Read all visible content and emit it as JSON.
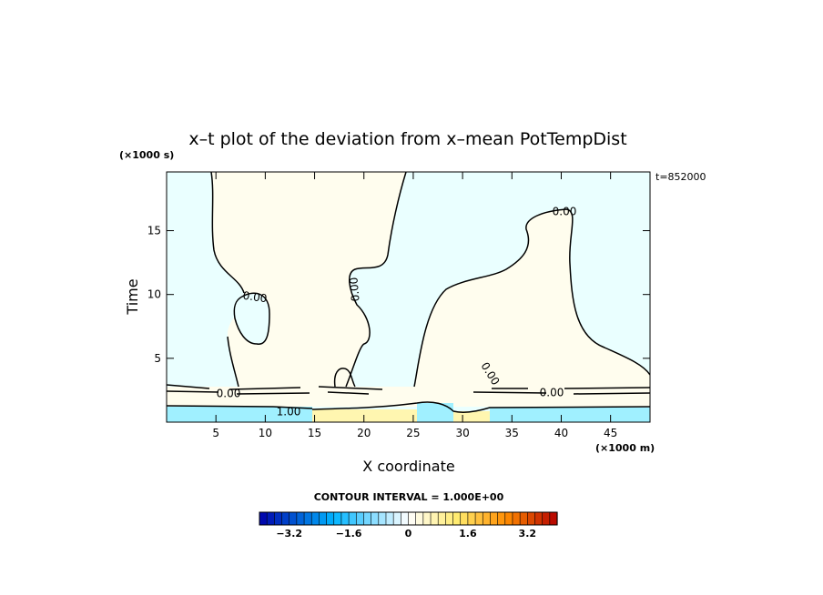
{
  "chart_data": {
    "type": "heatmap",
    "title": "x–t plot of the deviation from x–mean PotTempDist",
    "xlabel": "X coordinate",
    "ylabel": "Time",
    "x_unit": "(×1000 m)",
    "y_unit": "(×1000 s)",
    "time_stamp": "t=852000",
    "xlim": [
      0,
      49
    ],
    "ylim": [
      0,
      19.6
    ],
    "x_ticks": [
      5,
      10,
      15,
      20,
      25,
      30,
      35,
      40,
      45
    ],
    "y_ticks": [
      5,
      10,
      15
    ],
    "contour_labels": [
      "0.00",
      "0.00",
      "0.00",
      "0.00",
      "0.00",
      "0.00",
      "1.00"
    ],
    "contour_interval_text": "CONTOUR INTERVAL = 1.000E+00",
    "colorbar": {
      "min": -4,
      "max": 4,
      "step": 0.2,
      "tick_values": [
        -3.2,
        -1.6,
        0,
        1.6,
        3.2
      ],
      "tick_labels": [
        "−3.2",
        "−1.6",
        "0",
        "1.6",
        "3.2"
      ],
      "neg_end_color": "#0000aa",
      "neutral_color": "#ffffff",
      "pos_end_color": "#b40000"
    },
    "field_colors": {
      "slightly_negative": "#eaffff",
      "slightly_positive": "#fffdee",
      "moderate_negative": "#a0f0ff",
      "moderate_positive": "#fff6b0"
    }
  }
}
